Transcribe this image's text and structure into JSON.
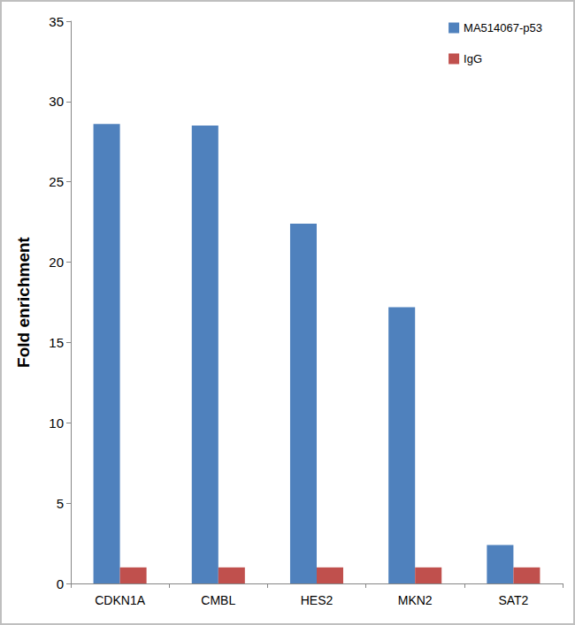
{
  "chart_data": {
    "type": "bar",
    "y_label": "Fold enrichment",
    "categories": [
      "CDKN1A",
      "CMBL",
      "HES2",
      "MKN2",
      "SAT2"
    ],
    "series": [
      {
        "name": "MA514067-p53",
        "color": "#4f81bd",
        "values": [
          28.6,
          28.5,
          22.4,
          17.2,
          2.4
        ]
      },
      {
        "name": "IgG",
        "color": "#c0504d",
        "values": [
          1,
          1,
          1,
          1,
          1
        ]
      }
    ],
    "ylim": [
      0,
      35
    ],
    "yticks": [
      0,
      5,
      10,
      15,
      20,
      25,
      30,
      35
    ],
    "grid": false,
    "legend": "top-right"
  }
}
